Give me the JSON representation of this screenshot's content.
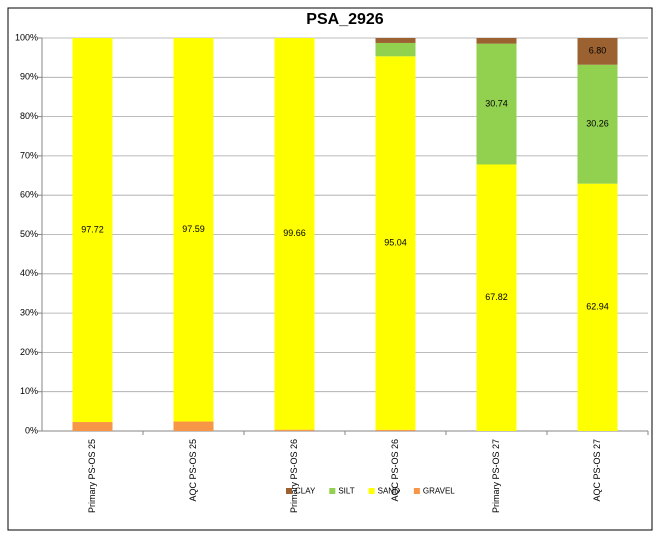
{
  "chart_data": {
    "type": "stacked-bar",
    "title": "PSA_2926",
    "categories": [
      "Primary PS-OS 25",
      "AQC PS-OS 25",
      "Primary PS-OS 26",
      "AQC PS-OS 26",
      "Primary PS-OS 27",
      "AQC PS-OS 27"
    ],
    "series": [
      {
        "name": "GRAVEL",
        "color": "#f79646",
        "values": [
          2.28,
          2.41,
          0.34,
          0.3,
          0,
          0
        ],
        "value_labels": [
          null,
          null,
          null,
          null,
          null,
          null
        ]
      },
      {
        "name": "SAND",
        "color": "#ffff00",
        "values": [
          97.72,
          97.59,
          99.66,
          95.04,
          67.82,
          62.94
        ],
        "value_labels": [
          "97.72",
          "97.59",
          "99.66",
          "95.04",
          "67.82",
          "62.94"
        ]
      },
      {
        "name": "SILT",
        "color": "#92d050",
        "values": [
          0,
          0,
          0,
          3.4,
          30.74,
          30.26
        ],
        "value_labels": [
          null,
          null,
          null,
          null,
          "30.74",
          "30.26"
        ]
      },
      {
        "name": "CLAY",
        "color": "#9c6130",
        "values": [
          0,
          0,
          0,
          1.26,
          1.44,
          6.8
        ],
        "value_labels": [
          null,
          null,
          null,
          null,
          null,
          "6.80"
        ]
      }
    ],
    "legend_order": [
      "CLAY",
      "SILT",
      "SAND",
      "GRAVEL"
    ],
    "ylim": [
      0,
      100
    ],
    "yticks": [
      {
        "value": 0,
        "label": "0%"
      },
      {
        "value": 10,
        "label": "10%"
      },
      {
        "value": 20,
        "label": "20%"
      },
      {
        "value": 30,
        "label": "30%"
      },
      {
        "value": 40,
        "label": "40%"
      },
      {
        "value": 50,
        "label": "50%"
      },
      {
        "value": 60,
        "label": "60%"
      },
      {
        "value": 70,
        "label": "70%"
      },
      {
        "value": 80,
        "label": "80%"
      },
      {
        "value": 90,
        "label": "90%"
      },
      {
        "value": 100,
        "label": "100%"
      }
    ],
    "grid": true
  }
}
